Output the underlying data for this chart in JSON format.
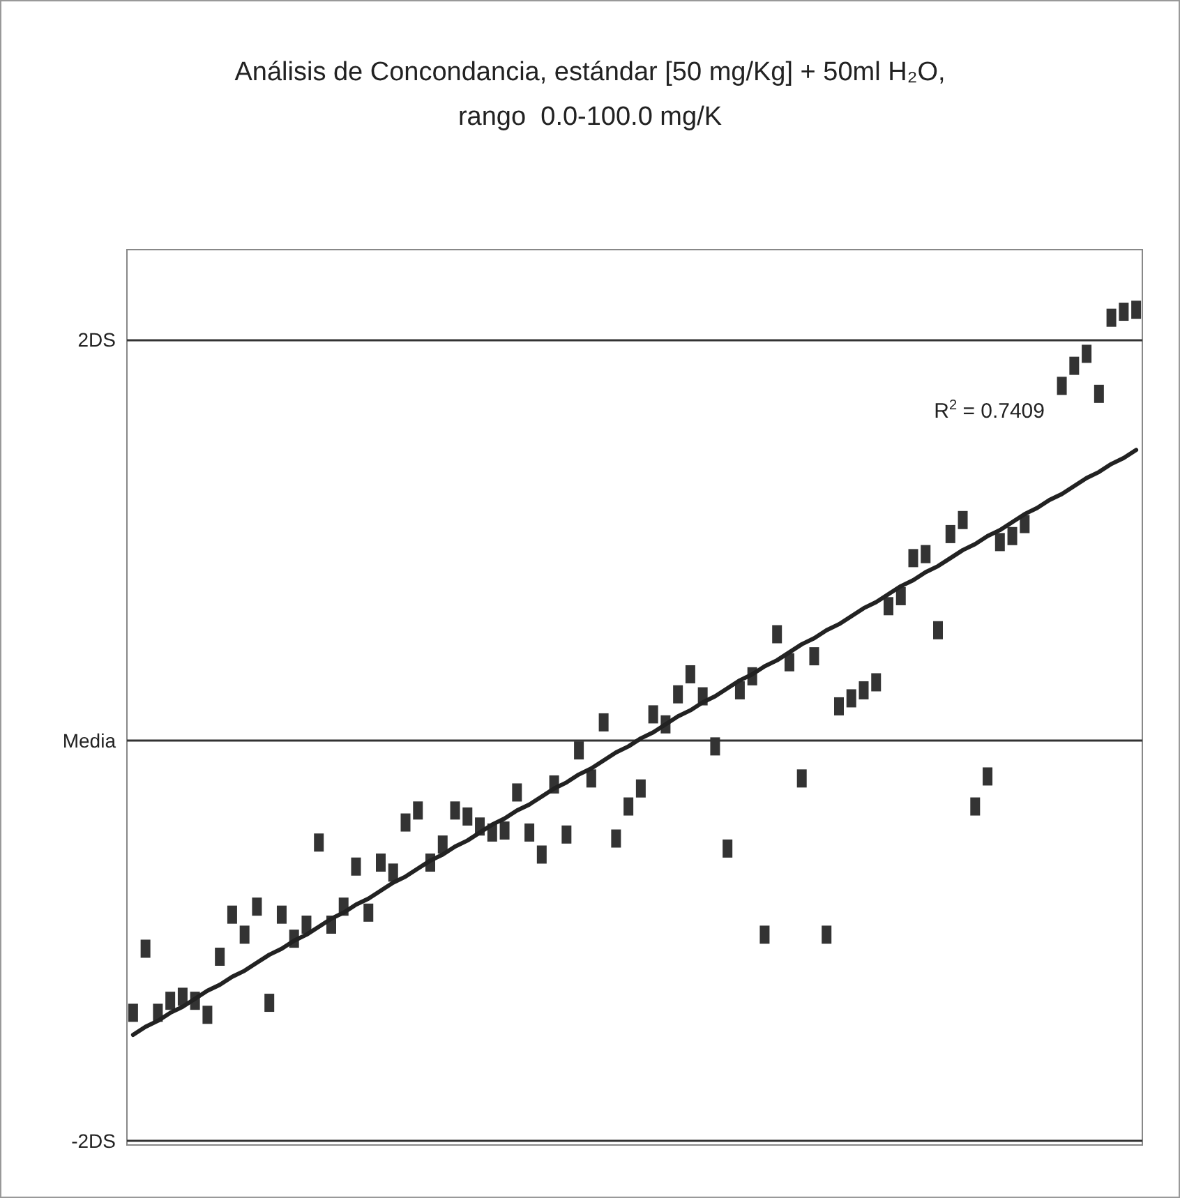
{
  "chart_data": {
    "type": "scatter",
    "title": "Análisis de Concondancia, estándar [50 mg/Kg] + 50ml H₂O,\nrango  0.0-100.0 mg/K",
    "categories": [
      null,
      null,
      null,
      null,
      null,
      null,
      null,
      null,
      null,
      null,
      null,
      null,
      null,
      null,
      null,
      null,
      null,
      null,
      null,
      null,
      null,
      null,
      null,
      null,
      null,
      null,
      null,
      null,
      null,
      null,
      null,
      null,
      null,
      null,
      null,
      null,
      null,
      null,
      null,
      null,
      null,
      null,
      null,
      null,
      null,
      null,
      null,
      null,
      null,
      null,
      null,
      null,
      null,
      null,
      null,
      null,
      null,
      null,
      null,
      null,
      null,
      null,
      null,
      null,
      null,
      null,
      null,
      null,
      null,
      null,
      null,
      null,
      null,
      null,
      null,
      null,
      null,
      null,
      null,
      null,
      null,
      null
    ],
    "series": [
      {
        "color": "#333333",
        "marker": "square",
        "values": [
          -1.36,
          -1.04,
          -1.36,
          -1.3,
          -1.28,
          -1.3,
          -1.37,
          -1.08,
          -0.87,
          -0.97,
          -0.83,
          -1.31,
          -0.87,
          -0.99,
          -0.92,
          -0.51,
          -0.92,
          -0.83,
          -0.63,
          -0.86,
          -0.61,
          -0.66,
          -0.41,
          -0.35,
          -0.61,
          -0.52,
          -0.35,
          -0.38,
          -0.43,
          -0.46,
          -0.45,
          -0.26,
          -0.46,
          -0.57,
          -0.22,
          -0.47,
          -0.05,
          -0.19,
          0.09,
          -0.49,
          -0.33,
          -0.24,
          0.13,
          0.08,
          0.23,
          0.33,
          0.22,
          -0.03,
          -0.54,
          0.25,
          0.32,
          -0.97,
          0.53,
          0.39,
          -0.19,
          0.42,
          -0.97,
          0.17,
          0.21,
          0.25,
          0.29,
          0.67,
          0.72,
          0.91,
          0.93,
          0.55,
          1.03,
          1.1,
          -0.33,
          -0.18,
          0.99,
          1.02,
          1.08,
          null,
          null,
          1.77,
          1.87,
          1.93,
          1.73,
          2.11,
          2.14,
          2.15
        ]
      },
      {
        "type": "line",
        "color": "#222222",
        "marker": "none",
        "line_style": "solid",
        "values": [
          -1.47,
          -1.43,
          -1.4,
          -1.36,
          -1.33,
          -1.29,
          -1.25,
          -1.22,
          -1.18,
          -1.15,
          -1.11,
          -1.07,
          -1.04,
          -1.0,
          -0.97,
          -0.93,
          -0.89,
          -0.86,
          -0.82,
          -0.79,
          -0.75,
          -0.71,
          -0.68,
          -0.64,
          -0.6,
          -0.57,
          -0.53,
          -0.5,
          -0.46,
          -0.42,
          -0.39,
          -0.35,
          -0.32,
          -0.28,
          -0.24,
          -0.21,
          -0.17,
          -0.14,
          -0.1,
          -0.06,
          -0.03,
          0.01,
          0.04,
          0.08,
          0.12,
          0.15,
          0.19,
          0.22,
          0.26,
          0.3,
          0.33,
          0.37,
          0.4,
          0.44,
          0.48,
          0.51,
          0.55,
          0.58,
          0.62,
          0.66,
          0.69,
          0.73,
          0.77,
          0.8,
          0.84,
          0.87,
          0.91,
          0.95,
          0.98,
          1.02,
          1.05,
          1.09,
          1.13,
          1.16,
          1.2,
          1.23,
          1.27,
          1.31,
          1.34,
          1.38,
          1.41,
          1.45
        ]
      }
    ],
    "ylim": [
      -2.02,
      2.45
    ],
    "yticks": [
      {
        "value": -2,
        "label": "-2DS"
      },
      {
        "value": 0,
        "label": "Media"
      },
      {
        "value": 2,
        "label": "2DS"
      }
    ],
    "grid": "y",
    "tick_labels": "y",
    "annotations": [
      "R$^{2}$ = 0.7409"
    ]
  }
}
